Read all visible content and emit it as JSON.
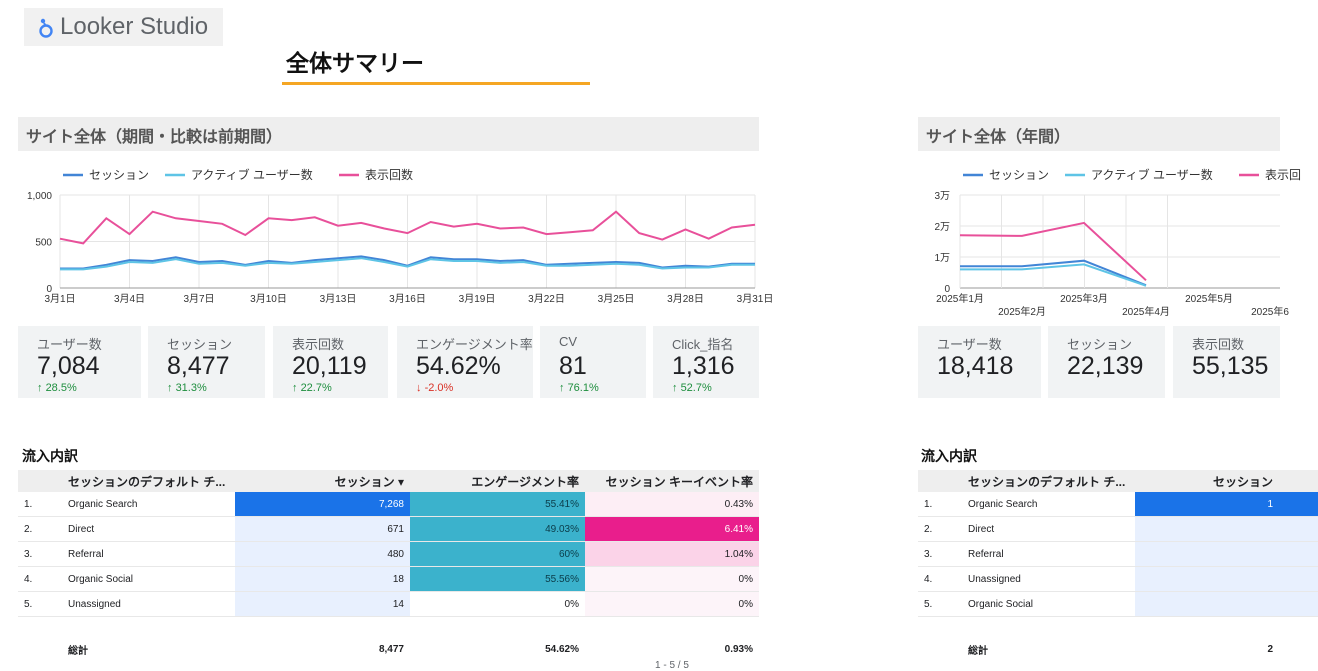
{
  "app": {
    "name": "Looker Studio",
    "page_title": "全体サマリー"
  },
  "left_panel": {
    "title": "サイト全体（期間・比較は前期間）",
    "legend": [
      "セッション",
      "アクティブ ユーザー数",
      "表示回数"
    ],
    "kpis": [
      {
        "label": "ユーザー数",
        "value": "7,084",
        "delta": "28.5%",
        "dir": "up"
      },
      {
        "label": "セッション",
        "value": "8,477",
        "delta": "31.3%",
        "dir": "up"
      },
      {
        "label": "表示回数",
        "value": "20,119",
        "delta": "22.7%",
        "dir": "up"
      },
      {
        "label": "エンゲージメント率",
        "value": "54.62%",
        "delta": "-2.0%",
        "dir": "down"
      },
      {
        "label": "CV",
        "value": "81",
        "delta": "76.1%",
        "dir": "up"
      },
      {
        "label": "Click_指名",
        "value": "1,316",
        "delta": "52.7%",
        "dir": "up"
      }
    ],
    "flow_title": "流入内訳",
    "table": {
      "headers": [
        "セッションのデフォルト チ...",
        "セッション ▾",
        "エンゲージメント率",
        "セッション キーイベント率"
      ],
      "rows": [
        {
          "n": "1.",
          "channel": "Organic Search",
          "sessions": "7,268",
          "engagement": "55.41%",
          "key_event": "0.43%"
        },
        {
          "n": "2.",
          "channel": "Direct",
          "sessions": "671",
          "engagement": "49.03%",
          "key_event": "6.41%"
        },
        {
          "n": "3.",
          "channel": "Referral",
          "sessions": "480",
          "engagement": "60%",
          "key_event": "1.04%"
        },
        {
          "n": "4.",
          "channel": "Organic Social",
          "sessions": "18",
          "engagement": "55.56%",
          "key_event": "0%"
        },
        {
          "n": "5.",
          "channel": "Unassigned",
          "sessions": "14",
          "engagement": "0%",
          "key_event": "0%"
        }
      ],
      "total": {
        "label": "総計",
        "sessions": "8,477",
        "engagement": "54.62%",
        "key_event": "0.93%"
      },
      "pager": "1 - 5 / 5"
    }
  },
  "right_panel": {
    "title": "サイト全体（年間）",
    "legend": [
      "セッション",
      "アクティブ ユーザー数",
      "表示回"
    ],
    "kpis": [
      {
        "label": "ユーザー数",
        "value": "18,418"
      },
      {
        "label": "セッション",
        "value": "22,139"
      },
      {
        "label": "表示回数",
        "value": "55,135"
      }
    ],
    "flow_title": "流入内訳",
    "table": {
      "headers": [
        "セッションのデフォルト チ...",
        "セッション"
      ],
      "rows": [
        {
          "n": "1.",
          "channel": "Organic Search",
          "sessions": "1"
        },
        {
          "n": "2.",
          "channel": "Direct",
          "sessions": ""
        },
        {
          "n": "3.",
          "channel": "Referral",
          "sessions": ""
        },
        {
          "n": "4.",
          "channel": "Unassigned",
          "sessions": ""
        },
        {
          "n": "5.",
          "channel": "Organic Social",
          "sessions": ""
        }
      ],
      "total": {
        "label": "総計",
        "sessions": "2"
      }
    }
  },
  "colors": {
    "session": "#4285d6",
    "active_users": "#5ec4e6",
    "views": "#e8509a",
    "bar_blue_strong": "#1a73e8",
    "bar_blue_light": "#e8f0fe",
    "teal_strong": "#3bb2cc",
    "teal_light": "#d6f0f6",
    "pink_strong": "#e91e8c",
    "pink_light": "#fbd3e8",
    "pink_pale": "#fdeef5"
  },
  "chart_data": [
    {
      "type": "line",
      "x": [
        "3月1日",
        "3月2日",
        "3月3日",
        "3月4日",
        "3月5日",
        "3月6日",
        "3月7日",
        "3月8日",
        "3月9日",
        "3月10日",
        "3月11日",
        "3月12日",
        "3月13日",
        "3月14日",
        "3月15日",
        "3月16日",
        "3月17日",
        "3月18日",
        "3月19日",
        "3月20日",
        "3月21日",
        "3月22日",
        "3月23日",
        "3月24日",
        "3月25日",
        "3月26日",
        "3月27日",
        "3月28日",
        "3月29日",
        "3月30日",
        "3月31日"
      ],
      "xticks": [
        "3月1日",
        "3月4日",
        "3月7日",
        "3月10日",
        "3月13日",
        "3月16日",
        "3月19日",
        "3月22日",
        "3月25日",
        "3月28日",
        "3月31日"
      ],
      "yticks": [
        "0",
        "500",
        "1,000"
      ],
      "ylim": [
        0,
        1000
      ],
      "series": [
        {
          "name": "表示回数",
          "color": "#e8509a",
          "values": [
            530,
            480,
            750,
            580,
            820,
            750,
            720,
            690,
            570,
            750,
            730,
            760,
            670,
            700,
            640,
            590,
            710,
            660,
            690,
            640,
            650,
            580,
            600,
            620,
            820,
            590,
            520,
            630,
            530,
            650,
            680
          ]
        },
        {
          "name": "セッション",
          "color": "#4285d6",
          "values": [
            210,
            210,
            250,
            300,
            290,
            330,
            280,
            290,
            250,
            290,
            270,
            300,
            320,
            340,
            300,
            240,
            330,
            310,
            310,
            290,
            300,
            250,
            260,
            270,
            280,
            270,
            220,
            240,
            230,
            260,
            260
          ]
        },
        {
          "name": "アクティブ ユーザー数",
          "color": "#5ec4e6",
          "values": [
            200,
            200,
            230,
            280,
            270,
            310,
            260,
            270,
            240,
            270,
            260,
            280,
            300,
            320,
            280,
            230,
            310,
            290,
            290,
            270,
            280,
            240,
            240,
            250,
            260,
            250,
            210,
            220,
            220,
            250,
            250
          ]
        }
      ]
    },
    {
      "type": "line",
      "x": [
        "2025年1月",
        "2025年2月",
        "2025年3月",
        "2025年4月"
      ],
      "xticks": [
        "2025年1月",
        "2025年2月",
        "2025年3月",
        "2025年4月",
        "2025年5月",
        "2025年6"
      ],
      "yticks": [
        "0",
        "1万",
        "2万",
        "3万"
      ],
      "ylim": [
        0,
        30000
      ],
      "series": [
        {
          "name": "表示回数",
          "color": "#e8509a",
          "values": [
            17000,
            16800,
            21000,
            2500
          ]
        },
        {
          "name": "セッション",
          "color": "#4285d6",
          "values": [
            7000,
            7000,
            8800,
            900
          ]
        },
        {
          "name": "アクティブ ユーザー数",
          "color": "#5ec4e6",
          "values": [
            6000,
            6000,
            7600,
            700
          ]
        }
      ]
    }
  ]
}
